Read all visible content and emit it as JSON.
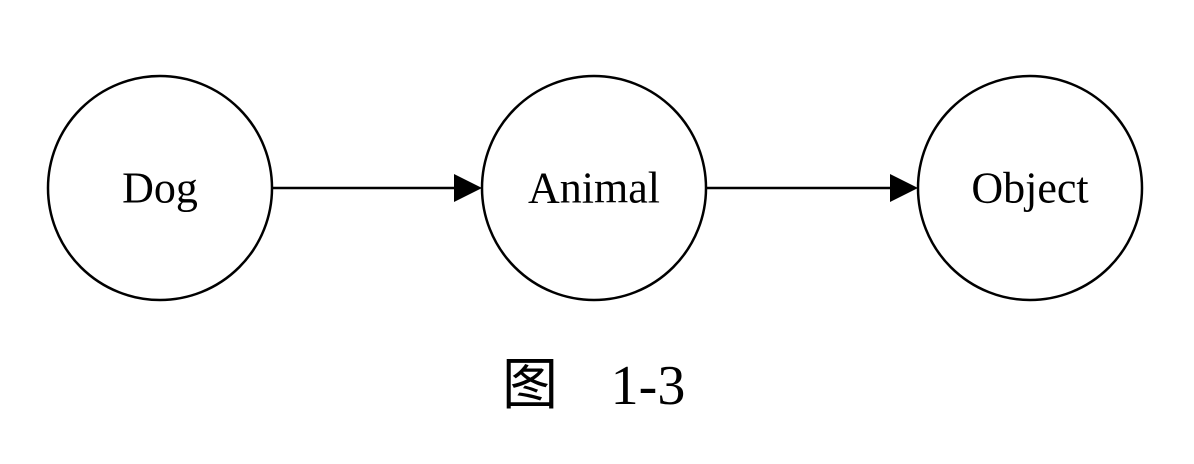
{
  "diagram": {
    "nodes": [
      {
        "id": "dog",
        "label": "Dog"
      },
      {
        "id": "animal",
        "label": "Animal"
      },
      {
        "id": "object",
        "label": "Object"
      }
    ],
    "edges": [
      {
        "from": "dog",
        "to": "animal"
      },
      {
        "from": "animal",
        "to": "object"
      }
    ],
    "caption": {
      "prefix": "图",
      "number": "1-3"
    }
  }
}
